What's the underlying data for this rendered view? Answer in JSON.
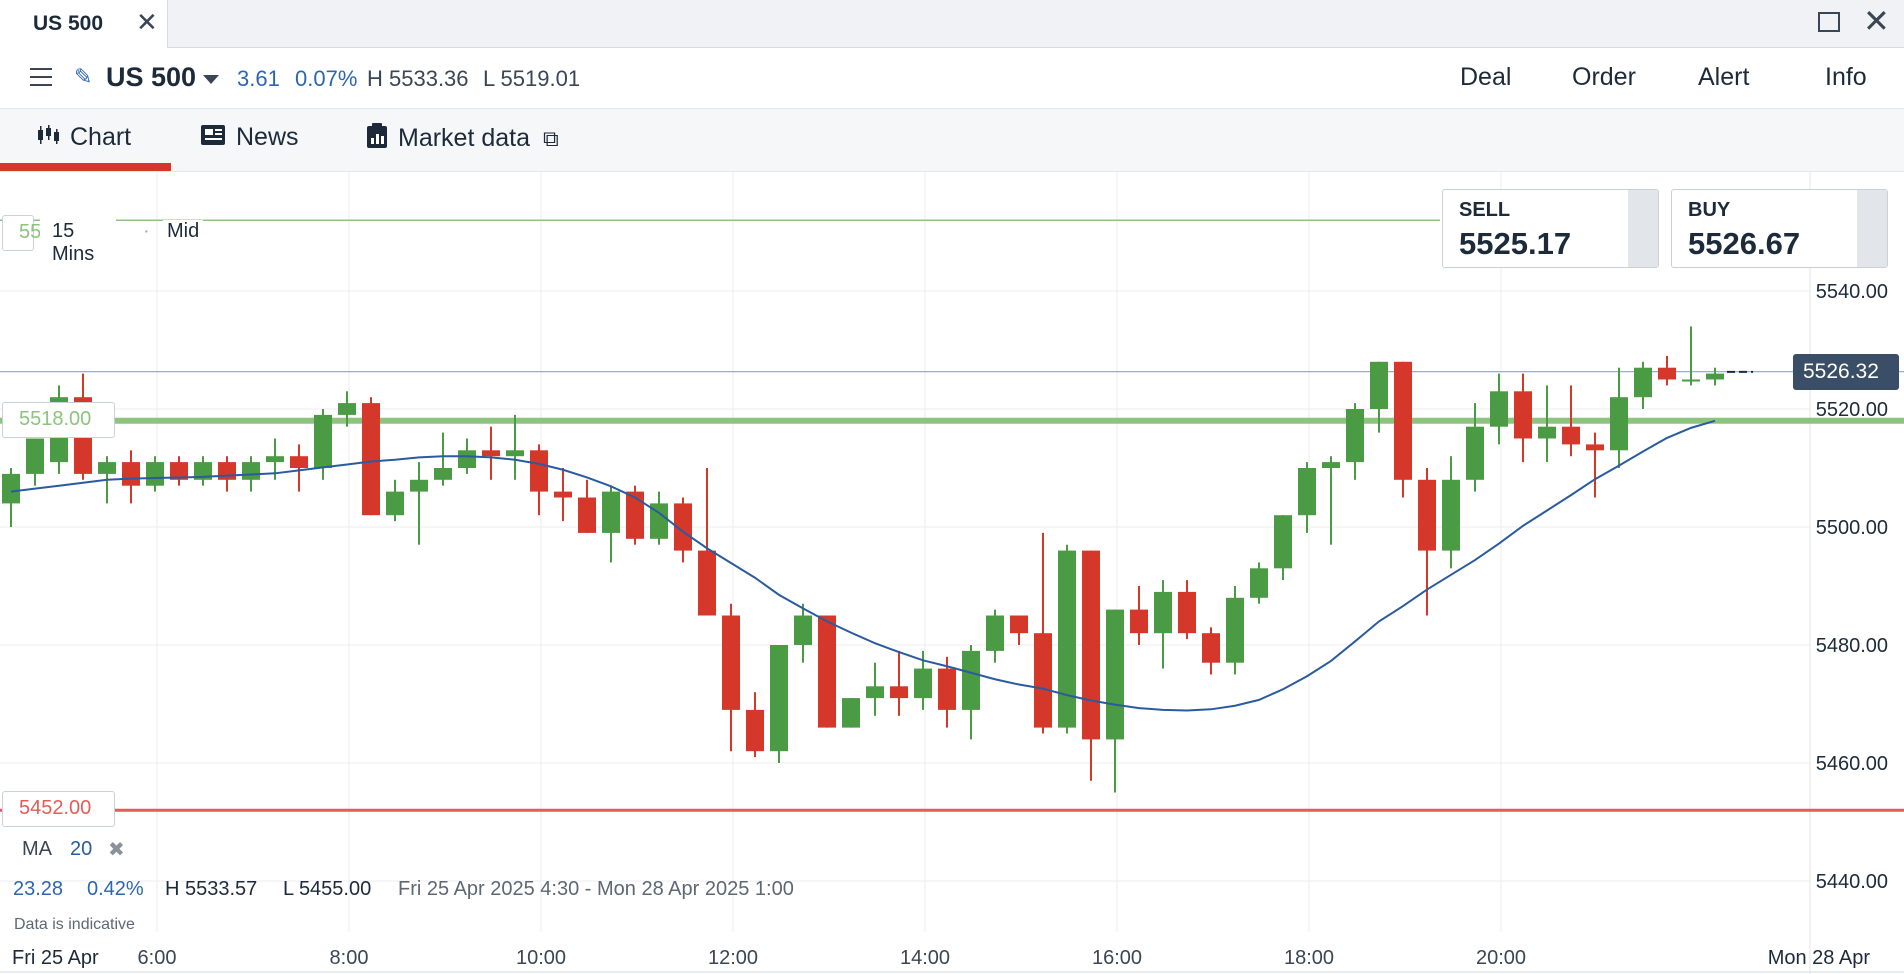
{
  "window": {
    "tab_title": "US 500",
    "close": "✕",
    "max": "",
    "win_close": "✕"
  },
  "header": {
    "instrument": "US 500",
    "change": "3.61",
    "change_pct": "0.07%",
    "high": "H 5533.36",
    "low": "L 5519.01",
    "actions": [
      "Deal",
      "Order",
      "Alert",
      "Info"
    ]
  },
  "tabs": {
    "chart": "Chart",
    "news": "News",
    "market_data": "Market data"
  },
  "chart_overlay": {
    "interval": "15 Mins",
    "price_type": "Mid",
    "line_green_label": "5518.00",
    "line_red_label": "5452.00",
    "line_top_partial": "55",
    "current_price_label": "5526.32"
  },
  "quote": {
    "sell_label": "SELL",
    "sell_value": "5525.17",
    "buy_label": "BUY",
    "buy_value": "5526.67"
  },
  "indicator": {
    "name": "MA",
    "period": "20",
    "remove": "✖"
  },
  "stats": {
    "change": "23.28",
    "change_pct": "0.42%",
    "high": "H 5533.57",
    "low": "L 5455.00",
    "range": "Fri 25 Apr 2025 4:30 - Mon 28 Apr 2025 1:00",
    "disclaimer": "Data is indicative"
  },
  "colors": {
    "up": "#4a9b43",
    "down": "#d6372b",
    "ma": "#2a5b9e",
    "accent": "#d6372b",
    "green_line": "#8cc47e",
    "red_line": "#e05e57"
  },
  "chart_data": {
    "type": "candlestick",
    "ylim": [
      5430,
      5556
    ],
    "y_ticks": [
      5540,
      5520,
      5500,
      5480,
      5460,
      5440
    ],
    "y_tick_labels": [
      "5540.00",
      "5520.00",
      "5500.00",
      "5480.00",
      "5460.00",
      "5440.00"
    ],
    "x_ticks": [
      "6:00",
      "8:00",
      "10:00",
      "12:00",
      "14:00",
      "16:00",
      "18:00",
      "20:00"
    ],
    "x_edge_left": "Fri 25 Apr",
    "x_edge_right": "Mon 28 Apr",
    "horizontal_lines": {
      "green": 5518,
      "red": 5452,
      "current": 5526.32,
      "top_green": 5552
    },
    "candles": [
      [
        5504,
        5510,
        5500,
        5509
      ],
      [
        5509,
        5514,
        5507,
        5515
      ],
      [
        5511,
        5524,
        5509,
        5522
      ],
      [
        5522,
        5526,
        5508,
        5509
      ],
      [
        5509,
        5512,
        5504,
        5511
      ],
      [
        5511,
        5513,
        5504,
        5507
      ],
      [
        5507,
        5512,
        5506,
        5511
      ],
      [
        5511,
        5512,
        5507,
        5508
      ],
      [
        5508,
        5512,
        5507,
        5511
      ],
      [
        5511,
        5512,
        5506,
        5508
      ],
      [
        5508,
        5512,
        5506,
        5511
      ],
      [
        5511,
        5515,
        5508,
        5512
      ],
      [
        5512,
        5514,
        5506,
        5510
      ],
      [
        5510,
        5520,
        5508,
        5519
      ],
      [
        5519,
        5523,
        5517,
        5521
      ],
      [
        5521,
        5522,
        5502,
        5502
      ],
      [
        5502,
        5508,
        5501,
        5506
      ],
      [
        5506,
        5511,
        5497,
        5508
      ],
      [
        5508,
        5516,
        5507,
        5510
      ],
      [
        5510,
        5515,
        5509,
        5513
      ],
      [
        5513,
        5517,
        5508,
        5512
      ],
      [
        5512,
        5519,
        5508,
        5513
      ],
      [
        5513,
        5514,
        5502,
        5506
      ],
      [
        5506,
        5510,
        5501,
        5505
      ],
      [
        5505,
        5508,
        5499,
        5499
      ],
      [
        5499,
        5507,
        5494,
        5506
      ],
      [
        5506,
        5507,
        5497,
        5498
      ],
      [
        5498,
        5506,
        5497,
        5504
      ],
      [
        5504,
        5505,
        5494,
        5496
      ],
      [
        5496,
        5510,
        5485,
        5485
      ],
      [
        5485,
        5487,
        5462,
        5469
      ],
      [
        5469,
        5472,
        5461,
        5462
      ],
      [
        5462,
        5480,
        5460,
        5480
      ],
      [
        5480,
        5487,
        5477,
        5485
      ],
      [
        5485,
        5485,
        5466,
        5466
      ],
      [
        5466,
        5471,
        5466,
        5471
      ],
      [
        5471,
        5477,
        5468,
        5473
      ],
      [
        5473,
        5479,
        5468,
        5471
      ],
      [
        5471,
        5479,
        5469,
        5476
      ],
      [
        5476,
        5478,
        5466,
        5469
      ],
      [
        5469,
        5480,
        5464,
        5479
      ],
      [
        5479,
        5486,
        5477,
        5485
      ],
      [
        5485,
        5485,
        5480,
        5482
      ],
      [
        5482,
        5499,
        5465,
        5466
      ],
      [
        5466,
        5497,
        5465,
        5496
      ],
      [
        5496,
        5496,
        5457,
        5464
      ],
      [
        5464,
        5486,
        5455,
        5486
      ],
      [
        5486,
        5490,
        5480,
        5482
      ],
      [
        5482,
        5491,
        5476,
        5489
      ],
      [
        5489,
        5491,
        5481,
        5482
      ],
      [
        5482,
        5483,
        5475,
        5477
      ],
      [
        5477,
        5490,
        5475,
        5488
      ],
      [
        5488,
        5494,
        5487,
        5493
      ],
      [
        5493,
        5502,
        5491,
        5502
      ],
      [
        5502,
        5511,
        5499,
        5510
      ],
      [
        5510,
        5512,
        5497,
        5511
      ],
      [
        5511,
        5521,
        5508,
        5520
      ],
      [
        5520,
        5528,
        5516,
        5528
      ],
      [
        5528,
        5528,
        5505,
        5508
      ],
      [
        5508,
        5510,
        5485,
        5496
      ],
      [
        5496,
        5512,
        5493,
        5508
      ],
      [
        5508,
        5521,
        5506,
        5517
      ],
      [
        5517,
        5526,
        5514,
        5523
      ],
      [
        5523,
        5526,
        5511,
        5515
      ],
      [
        5515,
        5524,
        5511,
        5517
      ],
      [
        5517,
        5524,
        5512,
        5514
      ],
      [
        5514,
        5516,
        5505,
        5513
      ],
      [
        5513,
        5527,
        5510,
        5522
      ],
      [
        5522,
        5528,
        5520,
        5527
      ],
      [
        5527,
        5529,
        5524,
        5525
      ],
      [
        5525,
        5534,
        5524,
        5525
      ],
      [
        5525,
        5527,
        5524,
        5526
      ]
    ],
    "ma": [
      5506,
      5506.5,
      5507,
      5507.5,
      5508,
      5508.2,
      5508.3,
      5508.4,
      5508.5,
      5508.7,
      5508.9,
      5509.1,
      5509.6,
      5510.1,
      5510.6,
      5511.1,
      5511.4,
      5511.8,
      5512,
      5512,
      5511.8,
      5511.4,
      5510.7,
      5509.7,
      5508.4,
      5506.9,
      5505,
      5502.4,
      5499.2,
      5496.4,
      5493.9,
      5491.4,
      5488.5,
      5486.2,
      5484,
      5482.1,
      5480.3,
      5478.8,
      5477.4,
      5476.4,
      5475.3,
      5474.2,
      5473.3,
      5472.6,
      5471.5,
      5470.6,
      5469.9,
      5469.3,
      5469,
      5468.9,
      5469.1,
      5469.7,
      5470.7,
      5472.5,
      5474.7,
      5477.3,
      5480.6,
      5484,
      5486.6,
      5489.4,
      5491.9,
      5494.4,
      5497.2,
      5500.2,
      5502.8,
      5505.4,
      5508.1,
      5510.4,
      5512.8,
      5515.1,
      5516.8,
      5518
    ]
  }
}
